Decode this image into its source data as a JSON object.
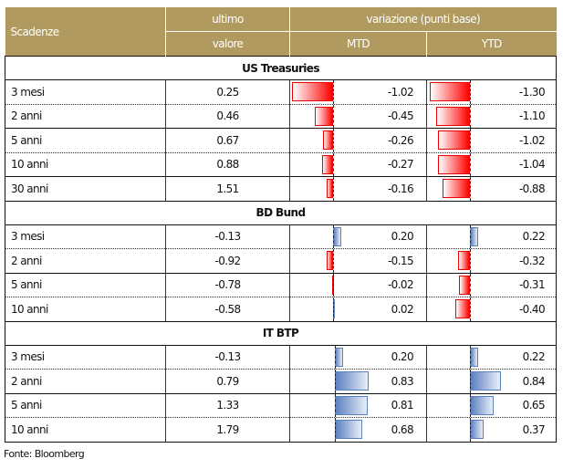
{
  "header": {
    "col1": "Scadenze",
    "col2_line1": "ultimo",
    "col2_line2": "valore",
    "variation": "variazione (punti base)",
    "mtd": "MTD",
    "ytd": "YTD"
  },
  "sections": [
    {
      "title": "US Treasuries",
      "rows": [
        {
          "label": "3 mesi",
          "value": "0.25",
          "mtd": -1.02,
          "ytd": -1.3,
          "mtd_text": "-1.02",
          "ytd_text": "-1.30"
        },
        {
          "label": "2 anni",
          "value": "0.46",
          "mtd": -0.45,
          "ytd": -1.1,
          "mtd_text": "-0.45",
          "ytd_text": "-1.10"
        },
        {
          "label": "5 anni",
          "value": "0.67",
          "mtd": -0.26,
          "ytd": -1.02,
          "mtd_text": "-0.26",
          "ytd_text": "-1.02"
        },
        {
          "label": "10 anni",
          "value": "0.88",
          "mtd": -0.27,
          "ytd": -1.04,
          "mtd_text": "-0.27",
          "ytd_text": "-1.04"
        },
        {
          "label": "30 anni",
          "value": "1.51",
          "mtd": -0.16,
          "ytd": -0.88,
          "mtd_text": "-0.16",
          "ytd_text": "-0.88"
        }
      ]
    },
    {
      "title": "BD Bund",
      "rows": [
        {
          "label": "3 mesi",
          "value": "-0.13",
          "mtd": 0.2,
          "ytd": 0.22,
          "mtd_text": "0.20",
          "ytd_text": "0.22"
        },
        {
          "label": "2 anni",
          "value": "-0.92",
          "mtd": -0.15,
          "ytd": -0.32,
          "mtd_text": "-0.15",
          "ytd_text": "-0.32"
        },
        {
          "label": "5 anni",
          "value": "-0.78",
          "mtd": -0.02,
          "ytd": -0.31,
          "mtd_text": "-0.02",
          "ytd_text": "-0.31"
        },
        {
          "label": "10 anni",
          "value": "-0.58",
          "mtd": 0.02,
          "ytd": -0.4,
          "mtd_text": "0.02",
          "ytd_text": "-0.40"
        }
      ]
    },
    {
      "title": "IT BTP",
      "rows": [
        {
          "label": "3 mesi",
          "value": "-0.13",
          "mtd": 0.2,
          "ytd": 0.22,
          "mtd_text": "0.20",
          "ytd_text": "0.22"
        },
        {
          "label": "2 anni",
          "value": "0.79",
          "mtd": 0.83,
          "ytd": 0.84,
          "mtd_text": "0.83",
          "ytd_text": "0.84"
        },
        {
          "label": "5 anni",
          "value": "1.33",
          "mtd": 0.81,
          "ytd": 0.65,
          "mtd_text": "0.81",
          "ytd_text": "0.65"
        },
        {
          "label": "10 anni",
          "value": "1.79",
          "mtd": 0.68,
          "ytd": 0.37,
          "mtd_text": "0.68",
          "ytd_text": "0.37"
        }
      ]
    }
  ],
  "source": "Fonte: Bloomberg"
}
